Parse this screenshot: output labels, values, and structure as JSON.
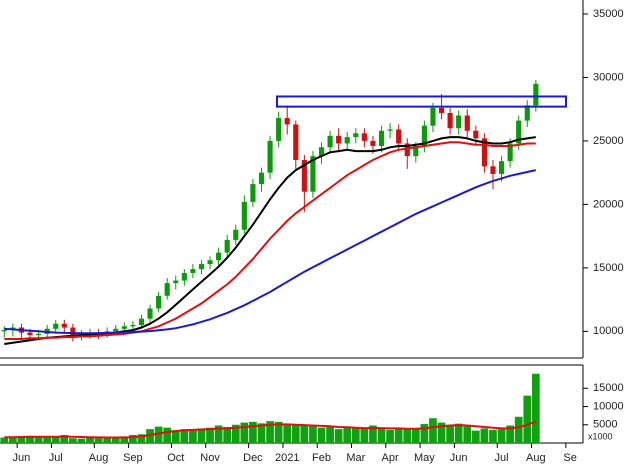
{
  "chart_data": [
    {
      "type": "candlestick",
      "up_color": "#0a9a0a",
      "down_color": "#d01010",
      "open": [
        10000,
        10100,
        10300,
        9900,
        9700,
        9800,
        10200,
        10600,
        10300,
        9700,
        9800,
        9900,
        9800,
        10000,
        10200,
        10400,
        10500,
        11000,
        11800,
        12800,
        13800,
        14000,
        14600,
        14900,
        15300,
        15600,
        16200,
        17200,
        18000,
        20200,
        21600,
        22500,
        25000,
        26800,
        26300,
        23500,
        21000,
        23800,
        24500,
        25400,
        24800,
        25300,
        25600,
        25000,
        24600,
        25800,
        25900,
        24800,
        23800,
        24600,
        26200,
        27600,
        27200,
        26000,
        27000,
        25800,
        25200,
        23000,
        22400,
        23400,
        24800,
        26600,
        27800,
        null,
        null,
        null,
        null,
        null
      ],
      "high": [
        10400,
        10600,
        10600,
        10200,
        10100,
        10500,
        10900,
        10900,
        10600,
        10100,
        10200,
        10200,
        10300,
        10500,
        10700,
        10800,
        11300,
        12100,
        13100,
        14200,
        14400,
        14900,
        15300,
        15600,
        15900,
        16600,
        17600,
        18400,
        20700,
        22000,
        22900,
        25400,
        27300,
        27800,
        26600,
        23900,
        24200,
        24900,
        25800,
        26000,
        25700,
        26000,
        26000,
        25400,
        26200,
        26400,
        26300,
        25200,
        24900,
        26600,
        28000,
        28700,
        27600,
        27400,
        27500,
        26200,
        25600,
        23500,
        23800,
        25200,
        27000,
        28200,
        29800,
        null,
        null,
        null,
        null,
        null
      ],
      "low": [
        9500,
        9600,
        9400,
        9200,
        9300,
        9400,
        9900,
        9900,
        9200,
        9300,
        9400,
        9400,
        9500,
        9700,
        9900,
        10000,
        10200,
        10700,
        11500,
        12500,
        13300,
        13600,
        14200,
        14500,
        14900,
        15200,
        15900,
        16800,
        17700,
        19800,
        21000,
        22000,
        24500,
        25500,
        22800,
        19400,
        20500,
        23200,
        24000,
        24200,
        24300,
        24800,
        24500,
        24000,
        24100,
        25200,
        24300,
        22800,
        23300,
        24100,
        25700,
        26700,
        25500,
        25500,
        25300,
        24700,
        22500,
        21200,
        21800,
        22900,
        24300,
        26100,
        27300,
        null,
        null,
        null,
        null,
        null
      ],
      "close": [
        10100,
        10300,
        9900,
        9700,
        9800,
        10200,
        10600,
        10300,
        9700,
        9800,
        9900,
        9800,
        10000,
        10200,
        10400,
        10500,
        11000,
        11800,
        12800,
        13800,
        14000,
        14600,
        14900,
        15300,
        15600,
        16200,
        17200,
        18000,
        20200,
        21600,
        22500,
        25000,
        26800,
        26300,
        23500,
        21000,
        23800,
        24500,
        25400,
        24800,
        25300,
        25600,
        25000,
        24600,
        25800,
        25900,
        24800,
        23800,
        24600,
        26200,
        27600,
        27200,
        26000,
        27000,
        25800,
        25200,
        23000,
        22400,
        23400,
        24800,
        26600,
        27800,
        29500,
        null,
        null,
        null,
        null,
        null
      ],
      "series": [
        {
          "color": "#000000",
          "values": [
            9000,
            9100,
            9200,
            9300,
            9400,
            9500,
            9550,
            9600,
            9650,
            9700,
            9750,
            9800,
            9850,
            9900,
            10000,
            10100,
            10300,
            10600,
            11000,
            11500,
            12100,
            12700,
            13300,
            13900,
            14500,
            15100,
            15800,
            16600,
            17500,
            18400,
            19400,
            20400,
            21300,
            22100,
            22700,
            23100,
            23500,
            23800,
            24100,
            24200,
            24300,
            24200,
            24200,
            24200,
            24300,
            24500,
            24600,
            24600,
            24700,
            24800,
            25000,
            25200,
            25300,
            25300,
            25200,
            25000,
            24900,
            24800,
            24800,
            24900,
            25100,
            25200,
            25300,
            null,
            null,
            null,
            null,
            null
          ]
        },
        {
          "color": "#e01010",
          "values": [
            9400,
            9400,
            9400,
            9450,
            9450,
            9500,
            9500,
            9550,
            9550,
            9600,
            9600,
            9650,
            9700,
            9750,
            9800,
            9900,
            10000,
            10200,
            10400,
            10700,
            11000,
            11400,
            11800,
            12200,
            12700,
            13200,
            13700,
            14300,
            15000,
            15700,
            16500,
            17300,
            18000,
            18700,
            19300,
            19800,
            20300,
            20800,
            21300,
            21800,
            22300,
            22700,
            23100,
            23500,
            23800,
            24100,
            24300,
            24400,
            24500,
            24600,
            24700,
            24800,
            24900,
            24900,
            24800,
            24700,
            24700,
            24600,
            24600,
            24600,
            24700,
            24800,
            24800,
            null,
            null,
            null,
            null,
            null
          ]
        },
        {
          "color": "#1a1ad0",
          "values": [
            10200,
            10150,
            10100,
            10050,
            10000,
            9950,
            9900,
            9880,
            9860,
            9850,
            9850,
            9860,
            9880,
            9900,
            9920,
            9950,
            9980,
            10020,
            10080,
            10150,
            10250,
            10400,
            10550,
            10750,
            10950,
            11200,
            11450,
            11750,
            12050,
            12400,
            12750,
            13100,
            13500,
            13900,
            14300,
            14700,
            15050,
            15400,
            15750,
            16100,
            16450,
            16800,
            17150,
            17500,
            17850,
            18200,
            18550,
            18900,
            19250,
            19550,
            19850,
            20150,
            20450,
            20750,
            21050,
            21350,
            21600,
            21850,
            22050,
            22250,
            22400,
            22550,
            22700,
            null,
            null,
            null,
            null,
            null
          ]
        }
      ],
      "resistance_zone": {
        "low": 27700,
        "high": 28500,
        "color": "#1a1ad0"
      },
      "ylim": [
        7900,
        36100
      ],
      "yticks": [
        10000,
        15000,
        20000,
        25000,
        30000,
        35000
      ]
    },
    {
      "type": "bar",
      "categories": [
        null,
        null,
        "Jun",
        null,
        null,
        null,
        "Jul",
        null,
        null,
        null,
        null,
        "Aug",
        null,
        null,
        null,
        "Sep",
        null,
        null,
        null,
        null,
        "Oct",
        null,
        null,
        null,
        "Nov",
        null,
        null,
        null,
        null,
        "Dec",
        null,
        null,
        null,
        "2021",
        null,
        null,
        null,
        "Feb",
        null,
        null,
        null,
        "Mar",
        null,
        null,
        null,
        "Apr",
        null,
        null,
        null,
        "May",
        null,
        null,
        null,
        "Jun",
        null,
        null,
        null,
        null,
        "Jul",
        null,
        null,
        null,
        "Aug",
        null,
        null,
        null,
        "Se",
        null
      ],
      "series": [
        {
          "type": "bar",
          "color": "#10a010",
          "values": [
            1500,
            1800,
            1400,
            2000,
            1600,
            1500,
            1900,
            2200,
            1300,
            1200,
            1400,
            1300,
            1500,
            1600,
            1800,
            2200,
            2400,
            3800,
            4500,
            4200,
            3500,
            3800,
            3600,
            4000,
            4200,
            4800,
            4400,
            5000,
            5600,
            5800,
            5400,
            6000,
            5800,
            5200,
            4800,
            5000,
            4600,
            4200,
            4400,
            3800,
            4500,
            4300,
            4000,
            4800,
            4200,
            3600,
            4100,
            3900,
            4000,
            5200,
            6800,
            5600,
            5000,
            5300,
            4600,
            3400,
            4000,
            3600,
            3800,
            4800,
            7200,
            13000,
            19000,
            null,
            null,
            null,
            null,
            null
          ]
        },
        {
          "type": "line",
          "color": "#e01010",
          "values": [
            1600,
            1600,
            1650,
            1650,
            1700,
            1700,
            1700,
            1750,
            1700,
            1650,
            1600,
            1550,
            1500,
            1500,
            1550,
            1600,
            1800,
            2200,
            2600,
            3000,
            3300,
            3500,
            3600,
            3700,
            3800,
            3900,
            4000,
            4200,
            4400,
            4600,
            4800,
            5000,
            5100,
            5100,
            5000,
            4900,
            4800,
            4700,
            4600,
            4400,
            4300,
            4200,
            4100,
            4100,
            4100,
            4000,
            4000,
            3900,
            3900,
            4000,
            4300,
            4600,
            4800,
            4900,
            4800,
            4600,
            4400,
            4200,
            4000,
            4000,
            4300,
            5000,
            5900,
            null,
            null,
            null,
            null,
            null
          ]
        }
      ],
      "unit_label": "x1000",
      "ylim": [
        0,
        21400
      ],
      "yticks": [
        5000,
        10000,
        15000
      ]
    }
  ]
}
